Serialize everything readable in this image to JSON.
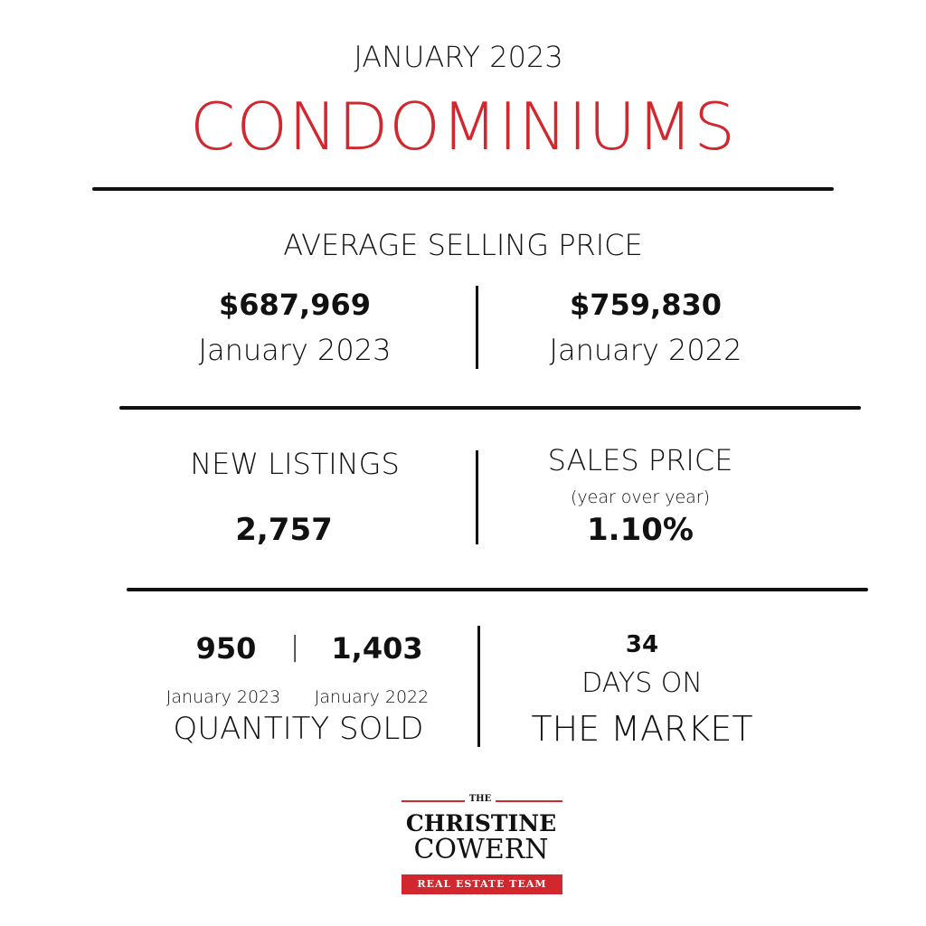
{
  "header": {
    "month": "JANUARY 2023",
    "category": "CONDOMINIUMS"
  },
  "average_selling_price": {
    "label": "AVERAGE SELLING PRICE",
    "current": {
      "value": "$687,969",
      "period": "January 2023"
    },
    "previous": {
      "value": "$759,830",
      "period": "January 2022"
    }
  },
  "new_listings": {
    "label": "NEW LISTINGS",
    "value": "2,757"
  },
  "sales_price_change": {
    "label": "SALES PRICE",
    "sublabel": "(year over year)",
    "value": "1.10%"
  },
  "quantity_sold": {
    "current": {
      "value": "950",
      "period": "January 2023"
    },
    "separator": "|",
    "previous": {
      "value": "1,403",
      "period": "January 2022"
    },
    "label": "QUANTITY SOLD"
  },
  "days_on_market": {
    "value": "34",
    "label_line1": "DAYS ON",
    "label_line2": "THE MARKET"
  },
  "logo": {
    "the": "THE",
    "name_line1": "CHRISTINE",
    "name_line2": "COWERN",
    "tagline": "REAL ESTATE TEAM"
  },
  "colors": {
    "accent": "#d0282e",
    "text": "#111111",
    "background": "#ffffff"
  }
}
